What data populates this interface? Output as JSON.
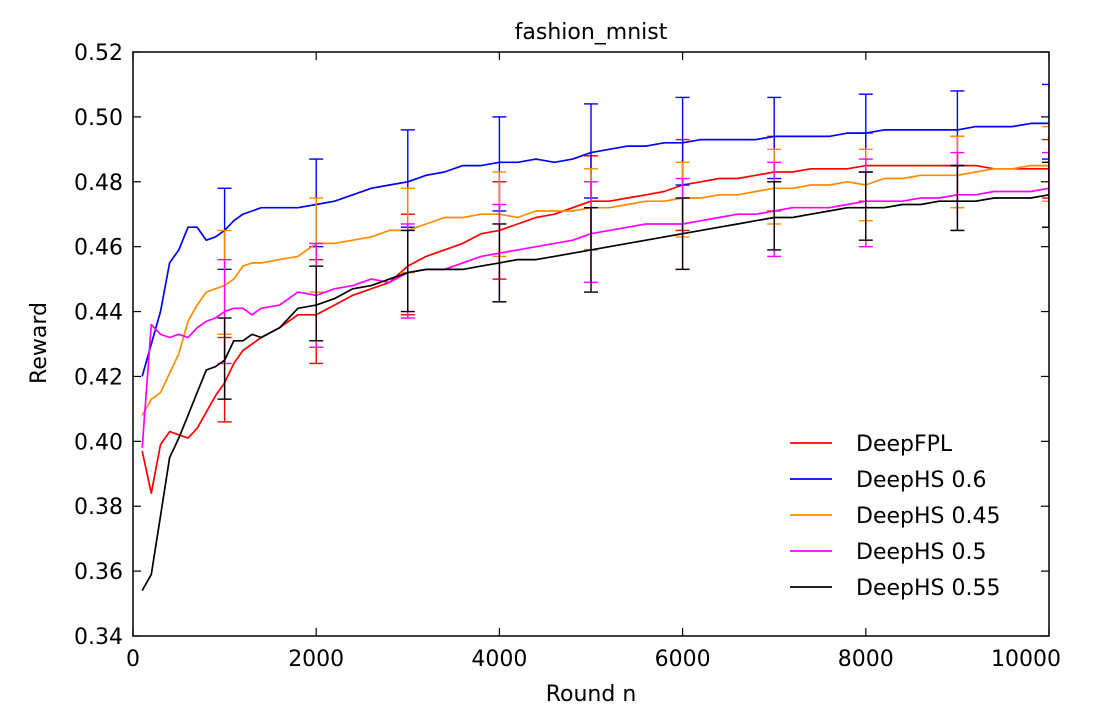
{
  "chart_data": {
    "type": "line",
    "title": "fashion_mnist",
    "xlabel": "Round n",
    "ylabel": "Reward",
    "xlim": [
      0,
      10000
    ],
    "ylim": [
      0.34,
      0.52
    ],
    "xticks": [
      0,
      2000,
      4000,
      6000,
      8000,
      10000
    ],
    "xtick_labels": [
      "0",
      "2000",
      "4000",
      "6000",
      "8000",
      "10000"
    ],
    "yticks": [
      0.34,
      0.36,
      0.38,
      0.4,
      0.42,
      0.44,
      0.46,
      0.48,
      0.5,
      0.52
    ],
    "ytick_labels": [
      "0.34",
      "0.36",
      "0.38",
      "0.40",
      "0.42",
      "0.44",
      "0.46",
      "0.48",
      "0.50",
      "0.52"
    ],
    "grid": false,
    "legend_position": "lower-right",
    "series": [
      {
        "name": "DeepFPL",
        "color": "#ff0000",
        "x": [
          100,
          200,
          300,
          400,
          500,
          600,
          700,
          800,
          900,
          1000,
          1100,
          1200,
          1400,
          1600,
          1800,
          2000,
          2200,
          2400,
          2600,
          2800,
          3000,
          3200,
          3400,
          3600,
          3800,
          4000,
          4200,
          4400,
          4600,
          4800,
          5000,
          5200,
          5400,
          5600,
          5800,
          6000,
          6200,
          6400,
          6600,
          6800,
          7000,
          7200,
          7400,
          7600,
          7800,
          8000,
          8200,
          8400,
          8600,
          8800,
          9000,
          9200,
          9400,
          9600,
          9800,
          10000
        ],
        "y": [
          0.397,
          0.384,
          0.399,
          0.403,
          0.402,
          0.401,
          0.404,
          0.409,
          0.414,
          0.418,
          0.424,
          0.428,
          0.432,
          0.435,
          0.439,
          0.439,
          0.442,
          0.445,
          0.447,
          0.449,
          0.454,
          0.457,
          0.459,
          0.461,
          0.464,
          0.465,
          0.467,
          0.469,
          0.47,
          0.472,
          0.474,
          0.474,
          0.475,
          0.476,
          0.477,
          0.479,
          0.48,
          0.481,
          0.481,
          0.482,
          0.483,
          0.483,
          0.484,
          0.484,
          0.484,
          0.485,
          0.485,
          0.485,
          0.485,
          0.485,
          0.485,
          0.485,
          0.484,
          0.484,
          0.484,
          0.484
        ],
        "errorbars": [
          {
            "x": 1000,
            "low": 0.406,
            "high": 0.432
          },
          {
            "x": 2000,
            "low": 0.424,
            "high": 0.456
          },
          {
            "x": 3000,
            "low": 0.439,
            "high": 0.47
          },
          {
            "x": 4000,
            "low": 0.45,
            "high": 0.48
          },
          {
            "x": 5000,
            "low": 0.459,
            "high": 0.488
          },
          {
            "x": 6000,
            "low": 0.465,
            "high": 0.493
          },
          {
            "x": 7000,
            "low": 0.471,
            "high": 0.494
          },
          {
            "x": 8000,
            "low": 0.474,
            "high": 0.495
          },
          {
            "x": 9000,
            "low": 0.474,
            "high": 0.494
          },
          {
            "x": 10000,
            "low": 0.475,
            "high": 0.493
          }
        ]
      },
      {
        "name": "DeepHS 0.6",
        "color": "#0000ff",
        "x": [
          100,
          200,
          300,
          400,
          500,
          600,
          700,
          800,
          900,
          1000,
          1100,
          1200,
          1300,
          1400,
          1600,
          1800,
          2000,
          2200,
          2400,
          2600,
          2800,
          3000,
          3200,
          3400,
          3600,
          3800,
          4000,
          4200,
          4400,
          4600,
          4800,
          5000,
          5200,
          5400,
          5600,
          5800,
          6000,
          6200,
          6400,
          6600,
          6800,
          7000,
          7200,
          7400,
          7600,
          7800,
          8000,
          8200,
          8400,
          8600,
          8800,
          9000,
          9200,
          9400,
          9600,
          9800,
          10000
        ],
        "y": [
          0.42,
          0.43,
          0.44,
          0.455,
          0.459,
          0.466,
          0.466,
          0.462,
          0.463,
          0.465,
          0.468,
          0.47,
          0.471,
          0.472,
          0.472,
          0.472,
          0.473,
          0.474,
          0.476,
          0.478,
          0.479,
          0.48,
          0.482,
          0.483,
          0.485,
          0.485,
          0.486,
          0.486,
          0.487,
          0.486,
          0.487,
          0.489,
          0.49,
          0.491,
          0.491,
          0.492,
          0.492,
          0.493,
          0.493,
          0.493,
          0.493,
          0.494,
          0.494,
          0.494,
          0.494,
          0.495,
          0.495,
          0.496,
          0.496,
          0.496,
          0.496,
          0.496,
          0.497,
          0.497,
          0.497,
          0.498,
          0.498
        ],
        "errorbars": [
          {
            "x": 1000,
            "low": 0.453,
            "high": 0.478
          },
          {
            "x": 2000,
            "low": 0.46,
            "high": 0.487
          },
          {
            "x": 3000,
            "low": 0.466,
            "high": 0.496
          },
          {
            "x": 4000,
            "low": 0.471,
            "high": 0.5
          },
          {
            "x": 5000,
            "low": 0.475,
            "high": 0.504
          },
          {
            "x": 6000,
            "low": 0.479,
            "high": 0.506
          },
          {
            "x": 7000,
            "low": 0.481,
            "high": 0.506
          },
          {
            "x": 8000,
            "low": 0.483,
            "high": 0.507
          },
          {
            "x": 9000,
            "low": 0.485,
            "high": 0.508
          },
          {
            "x": 10000,
            "low": 0.487,
            "high": 0.51
          }
        ]
      },
      {
        "name": "DeepHS 0.45",
        "color": "#ff8c00",
        "x": [
          100,
          200,
          300,
          400,
          500,
          600,
          700,
          800,
          900,
          1000,
          1100,
          1200,
          1300,
          1400,
          1600,
          1800,
          2000,
          2200,
          2400,
          2600,
          2800,
          3000,
          3200,
          3400,
          3600,
          3800,
          4000,
          4200,
          4400,
          4600,
          4800,
          5000,
          5200,
          5400,
          5600,
          5800,
          6000,
          6200,
          6400,
          6600,
          6800,
          7000,
          7200,
          7400,
          7600,
          7800,
          8000,
          8200,
          8400,
          8600,
          8800,
          9000,
          9200,
          9400,
          9600,
          9800,
          10000
        ],
        "y": [
          0.408,
          0.413,
          0.415,
          0.421,
          0.427,
          0.437,
          0.442,
          0.446,
          0.447,
          0.448,
          0.45,
          0.454,
          0.455,
          0.455,
          0.456,
          0.457,
          0.461,
          0.461,
          0.462,
          0.463,
          0.465,
          0.465,
          0.467,
          0.469,
          0.469,
          0.47,
          0.47,
          0.469,
          0.471,
          0.471,
          0.471,
          0.472,
          0.472,
          0.473,
          0.474,
          0.474,
          0.475,
          0.475,
          0.476,
          0.476,
          0.477,
          0.478,
          0.478,
          0.479,
          0.479,
          0.48,
          0.479,
          0.481,
          0.481,
          0.482,
          0.482,
          0.482,
          0.483,
          0.484,
          0.484,
          0.485,
          0.485
        ],
        "errorbars": [
          {
            "x": 1000,
            "low": 0.433,
            "high": 0.465
          },
          {
            "x": 2000,
            "low": 0.446,
            "high": 0.475
          },
          {
            "x": 3000,
            "low": 0.452,
            "high": 0.478
          },
          {
            "x": 4000,
            "low": 0.457,
            "high": 0.483
          },
          {
            "x": 5000,
            "low": 0.459,
            "high": 0.484
          },
          {
            "x": 6000,
            "low": 0.463,
            "high": 0.486
          },
          {
            "x": 7000,
            "low": 0.467,
            "high": 0.49
          },
          {
            "x": 8000,
            "low": 0.468,
            "high": 0.49
          },
          {
            "x": 9000,
            "low": 0.472,
            "high": 0.494
          },
          {
            "x": 10000,
            "low": 0.474,
            "high": 0.497
          }
        ]
      },
      {
        "name": "DeepHS 0.5",
        "color": "#ff00ff",
        "x": [
          100,
          200,
          300,
          400,
          500,
          600,
          700,
          800,
          900,
          1000,
          1100,
          1200,
          1300,
          1400,
          1600,
          1800,
          2000,
          2200,
          2400,
          2600,
          2800,
          3000,
          3200,
          3400,
          3600,
          3800,
          4000,
          4200,
          4400,
          4600,
          4800,
          5000,
          5200,
          5400,
          5600,
          5800,
          6000,
          6200,
          6400,
          6600,
          6800,
          7000,
          7200,
          7400,
          7600,
          7800,
          8000,
          8200,
          8400,
          8600,
          8800,
          9000,
          9200,
          9400,
          9600,
          9800,
          10000
        ],
        "y": [
          0.398,
          0.436,
          0.433,
          0.432,
          0.433,
          0.432,
          0.435,
          0.437,
          0.438,
          0.44,
          0.441,
          0.441,
          0.439,
          0.441,
          0.442,
          0.446,
          0.445,
          0.447,
          0.448,
          0.45,
          0.449,
          0.452,
          0.453,
          0.453,
          0.455,
          0.457,
          0.458,
          0.459,
          0.46,
          0.461,
          0.462,
          0.464,
          0.465,
          0.466,
          0.467,
          0.467,
          0.467,
          0.468,
          0.469,
          0.47,
          0.47,
          0.471,
          0.472,
          0.472,
          0.472,
          0.473,
          0.474,
          0.474,
          0.474,
          0.475,
          0.475,
          0.476,
          0.476,
          0.477,
          0.477,
          0.477,
          0.478
        ],
        "errorbars": [
          {
            "x": 1000,
            "low": 0.424,
            "high": 0.456
          },
          {
            "x": 2000,
            "low": 0.429,
            "high": 0.461
          },
          {
            "x": 3000,
            "low": 0.438,
            "high": 0.467
          },
          {
            "x": 4000,
            "low": 0.443,
            "high": 0.473
          },
          {
            "x": 5000,
            "low": 0.449,
            "high": 0.48
          },
          {
            "x": 6000,
            "low": 0.453,
            "high": 0.481
          },
          {
            "x": 7000,
            "low": 0.457,
            "high": 0.486
          },
          {
            "x": 8000,
            "low": 0.46,
            "high": 0.487
          },
          {
            "x": 9000,
            "low": 0.465,
            "high": 0.489
          },
          {
            "x": 10000,
            "low": 0.466,
            "high": 0.489
          }
        ]
      },
      {
        "name": "DeepHS 0.55",
        "color": "#000000",
        "x": [
          100,
          200,
          300,
          400,
          500,
          600,
          700,
          800,
          900,
          1000,
          1100,
          1200,
          1300,
          1400,
          1600,
          1800,
          2000,
          2200,
          2400,
          2600,
          2800,
          3000,
          3200,
          3400,
          3600,
          3800,
          4000,
          4200,
          4400,
          4600,
          4800,
          5000,
          5200,
          5400,
          5600,
          5800,
          6000,
          6200,
          6400,
          6600,
          6800,
          7000,
          7200,
          7400,
          7600,
          7800,
          8000,
          8200,
          8400,
          8600,
          8800,
          9000,
          9200,
          9400,
          9600,
          9800,
          10000
        ],
        "y": [
          0.354,
          0.359,
          0.377,
          0.395,
          0.401,
          0.408,
          0.415,
          0.422,
          0.423,
          0.425,
          0.431,
          0.431,
          0.433,
          0.432,
          0.435,
          0.441,
          0.442,
          0.444,
          0.447,
          0.448,
          0.45,
          0.452,
          0.453,
          0.453,
          0.453,
          0.454,
          0.455,
          0.456,
          0.456,
          0.457,
          0.458,
          0.459,
          0.46,
          0.461,
          0.462,
          0.463,
          0.464,
          0.465,
          0.466,
          0.467,
          0.468,
          0.469,
          0.469,
          0.47,
          0.471,
          0.472,
          0.472,
          0.472,
          0.473,
          0.473,
          0.474,
          0.474,
          0.474,
          0.475,
          0.475,
          0.475,
          0.476
        ],
        "errorbars": [
          {
            "x": 1000,
            "low": 0.413,
            "high": 0.438
          },
          {
            "x": 2000,
            "low": 0.431,
            "high": 0.454
          },
          {
            "x": 3000,
            "low": 0.44,
            "high": 0.465
          },
          {
            "x": 4000,
            "low": 0.443,
            "high": 0.467
          },
          {
            "x": 5000,
            "low": 0.446,
            "high": 0.472
          },
          {
            "x": 6000,
            "low": 0.453,
            "high": 0.475
          },
          {
            "x": 7000,
            "low": 0.459,
            "high": 0.48
          },
          {
            "x": 8000,
            "low": 0.462,
            "high": 0.483
          },
          {
            "x": 9000,
            "low": 0.465,
            "high": 0.485
          },
          {
            "x": 10000,
            "low": 0.466,
            "high": 0.486
          }
        ]
      }
    ]
  }
}
